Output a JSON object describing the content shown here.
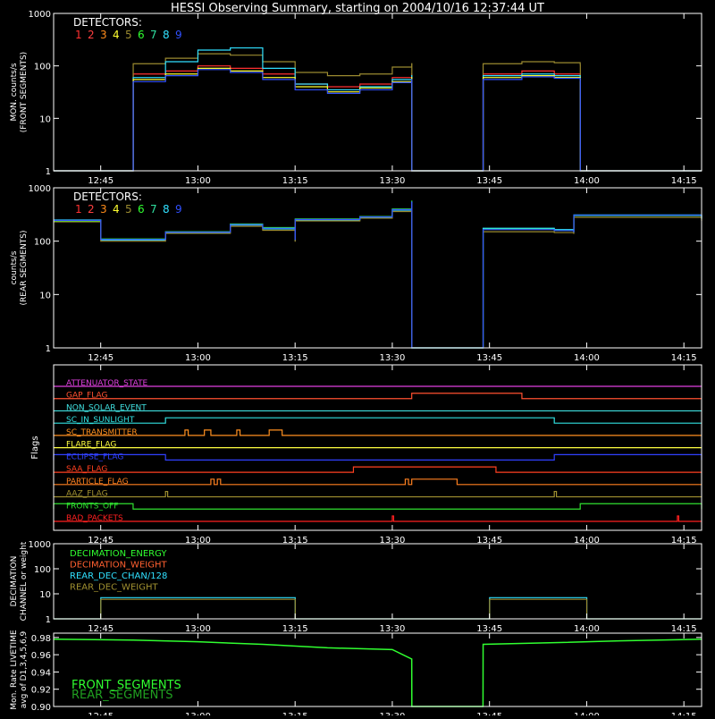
{
  "title": "HESSI Observing Summary, starting on 2004/10/16 12:37:44 UT",
  "colors": {
    "background": "#000000",
    "axes": "#ffffff",
    "detectors": [
      "#ff3030",
      "#ff4040",
      "#ff8c1a",
      "#ffff30",
      "#9a8a30",
      "#30ff30",
      "#30e0a0",
      "#30e0ff",
      "#3050ff"
    ]
  },
  "time_axis": {
    "start": "12:37:44",
    "end": "14:17:44",
    "tick_labels": [
      "12:45",
      "13:00",
      "13:15",
      "13:30",
      "13:45",
      "14:00",
      "14:15"
    ]
  },
  "chart_data": [
    {
      "id": "front",
      "type": "line",
      "ylabel_lines": [
        "MON. counts/s",
        "(FRONT SEGMENTS)"
      ],
      "yscale": "log",
      "ylim": [
        1,
        1000
      ],
      "ytick_labels": [
        "1",
        "10",
        "100",
        "1000"
      ],
      "legend_title": "DETECTORS:",
      "legend_items": [
        "1",
        "2",
        "3",
        "4",
        "5",
        "6",
        "7",
        "8",
        "9"
      ],
      "x": [
        "12:37:44",
        "12:50",
        "12:50:01",
        "12:55",
        "13:00",
        "13:05",
        "13:10",
        "13:15",
        "13:20",
        "13:25",
        "13:30",
        "13:33",
        "13:33:01",
        "13:44",
        "13:44:01",
        "13:50",
        "13:55",
        "13:59",
        "13:59:01",
        "14:17:44"
      ],
      "series": [
        {
          "color_index": 0,
          "values": [
            1,
            1,
            70,
            80,
            100,
            90,
            70,
            45,
            40,
            45,
            60,
            70,
            1,
            1,
            70,
            80,
            70,
            65,
            1,
            1
          ]
        },
        {
          "color_index": 4,
          "values": [
            1,
            1,
            110,
            140,
            170,
            160,
            120,
            75,
            65,
            70,
            95,
            110,
            1,
            1,
            110,
            120,
            115,
            105,
            1,
            1
          ]
        },
        {
          "color_index": 7,
          "values": [
            1,
            1,
            60,
            120,
            200,
            220,
            90,
            45,
            35,
            40,
            55,
            65,
            1,
            1,
            65,
            70,
            65,
            60,
            1,
            1
          ]
        },
        {
          "color_index": 3,
          "values": [
            1,
            1,
            55,
            70,
            90,
            80,
            60,
            40,
            32,
            38,
            50,
            60,
            1,
            1,
            60,
            65,
            60,
            55,
            1,
            1
          ]
        },
        {
          "color_index": 8,
          "values": [
            1,
            1,
            50,
            65,
            85,
            75,
            55,
            35,
            30,
            35,
            48,
            55,
            1,
            1,
            55,
            62,
            58,
            52,
            1,
            1
          ]
        }
      ]
    },
    {
      "id": "rear",
      "type": "line",
      "ylabel_lines": [
        "counts/s",
        "(REAR SEGMENTS)"
      ],
      "yscale": "log",
      "ylim": [
        1,
        1000
      ],
      "ytick_labels": [
        "1",
        "10",
        "100",
        "1000"
      ],
      "legend_title": "DETECTORS:",
      "legend_items": [
        "1",
        "2",
        "3",
        "4",
        "5",
        "6",
        "7",
        "8",
        "9"
      ],
      "x": [
        "12:37:44",
        "12:45",
        "12:45:01",
        "12:55",
        "13:05",
        "13:10",
        "13:15",
        "13:15:01",
        "13:25",
        "13:30",
        "13:33",
        "13:33:01",
        "13:44",
        "13:44:01",
        "13:50",
        "13:55",
        "13:58",
        "13:58:01",
        "14:17:44"
      ],
      "series": [
        {
          "color_index": 5,
          "values": [
            240,
            240,
            110,
            150,
            210,
            180,
            110,
            260,
            290,
            400,
            560,
            1,
            1,
            170,
            170,
            160,
            150,
            300,
            260
          ]
        },
        {
          "color_index": 7,
          "values": [
            250,
            250,
            105,
            145,
            200,
            170,
            105,
            250,
            280,
            380,
            530,
            1,
            1,
            175,
            175,
            165,
            155,
            310,
            270
          ]
        },
        {
          "color_index": 4,
          "values": [
            230,
            230,
            100,
            140,
            190,
            160,
            100,
            240,
            270,
            360,
            500,
            1,
            1,
            150,
            150,
            145,
            140,
            280,
            240
          ]
        },
        {
          "color_index": 8,
          "values": [
            245,
            245,
            108,
            148,
            205,
            175,
            108,
            255,
            285,
            390,
            540,
            1,
            1,
            165,
            165,
            158,
            150,
            305,
            265
          ]
        }
      ]
    },
    {
      "id": "flags",
      "type": "line",
      "ylabel": "Flags",
      "items": [
        {
          "label": "ATTENUATOR_STATE",
          "color": "#e040e0",
          "on": []
        },
        {
          "label": "GAP_FLAG",
          "color": "#ff5030",
          "on": [
            [
              "13:33",
              "13:50"
            ]
          ]
        },
        {
          "label": "NON_SOLAR_EVENT",
          "color": "#40e0e0",
          "on": []
        },
        {
          "label": "SC_IN_SUNLIGHT",
          "color": "#30e0e0",
          "on": [
            [
              "12:55",
              "13:55"
            ]
          ]
        },
        {
          "label": "SC_TRANSMITTER",
          "color": "#ff9020",
          "on": [
            [
              "12:58",
              "12:58:30"
            ],
            [
              "13:01",
              "13:02"
            ],
            [
              "13:06",
              "13:06:30"
            ],
            [
              "13:11",
              "13:13"
            ]
          ]
        },
        {
          "label": "FLARE_FLAG",
          "color": "#ffff40",
          "on": []
        },
        {
          "label": "ECLIPSE_FLAG",
          "color": "#3040ff",
          "on": [
            [
              "12:37:44",
              "12:55"
            ],
            [
              "13:55",
              "14:17:44"
            ]
          ]
        },
        {
          "label": "SAA_FLAG",
          "color": "#ff4020",
          "on": [
            [
              "13:24",
              "13:46"
            ]
          ]
        },
        {
          "label": "PARTICLE_FLAG",
          "color": "#ff8020",
          "on": [
            [
              "13:02",
              "13:02:30"
            ],
            [
              "13:03",
              "13:03:30"
            ],
            [
              "13:32",
              "13:32:30"
            ],
            [
              "13:33",
              "13:40"
            ]
          ]
        },
        {
          "label": "AAZ_FLAG",
          "color": "#a09030",
          "on": [
            [
              "12:55",
              "12:55:20"
            ],
            [
              "13:55",
              "13:55:20"
            ]
          ]
        },
        {
          "label": "FRONTS_OFF",
          "color": "#30e030",
          "on": [
            [
              "12:37:44",
              "12:50"
            ],
            [
              "13:59",
              "14:17:44"
            ]
          ]
        },
        {
          "label": "BAD_PACKETS",
          "color": "#ff2020",
          "on": [
            [
              "13:30",
              "13:30:10"
            ],
            [
              "14:14",
              "14:14:10"
            ]
          ]
        }
      ]
    },
    {
      "id": "decimation",
      "type": "line",
      "ylabel_lines": [
        "DECIMATION",
        "CHANNEL or weight"
      ],
      "yscale": "log",
      "ylim": [
        1,
        1000
      ],
      "ytick_labels": [
        "1",
        "10",
        "100",
        "1000"
      ],
      "legend_items": [
        "DECIMATION_ENERGY",
        "DECIMATION_WEIGHT",
        "REAR_DEC_CHAN/128",
        "REAR_DEC_WEIGHT"
      ],
      "legend_colors": [
        "#30ff30",
        "#ff6030",
        "#30e0ff",
        "#a09030"
      ],
      "x": [
        "12:37:44",
        "12:45",
        "12:45:01",
        "13:15",
        "13:15:01",
        "13:45",
        "13:45:01",
        "14:00",
        "14:00:01",
        "14:17:44"
      ],
      "series": [
        {
          "color_index": 7,
          "values": [
            1,
            1,
            7,
            7,
            1,
            1,
            7,
            7,
            1,
            1
          ]
        },
        {
          "color_index": 4,
          "values": [
            1,
            1,
            6,
            6,
            1,
            1,
            6,
            6,
            1,
            1
          ]
        }
      ]
    },
    {
      "id": "livetime",
      "type": "line",
      "ylabel_lines": [
        "Mon. Rate LIVETIME",
        "avg of D1,3,4,5,6,9"
      ],
      "ylim": [
        0.9,
        0.985
      ],
      "ytick_labels": [
        "0.90",
        "0.92",
        "0.94",
        "0.96",
        "0.98"
      ],
      "legend_items": [
        "FRONT_SEGMENTS",
        "REAR_SEGMENTS"
      ],
      "legend_colors": [
        "#30ff30",
        "#20a020"
      ],
      "x": [
        "12:37:44",
        "12:50",
        "13:00",
        "13:10",
        "13:20",
        "13:30",
        "13:33",
        "13:33:01",
        "13:44",
        "13:44:01",
        "13:55",
        "14:05",
        "14:17:44"
      ],
      "series": [
        {
          "color_index": 5,
          "values": [
            0.978,
            0.977,
            0.975,
            0.972,
            0.968,
            0.966,
            0.955,
            0.9,
            0.9,
            0.972,
            0.974,
            0.976,
            0.978
          ]
        }
      ]
    }
  ]
}
